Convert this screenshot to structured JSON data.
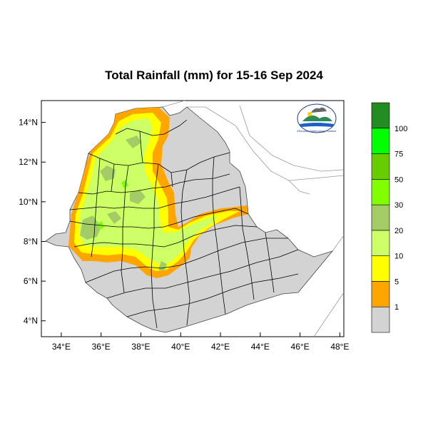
{
  "title": "Total Rainfall (mm) for 15-16 Sep 2024",
  "x_ticks": [
    {
      "value": 34,
      "label": "34°E"
    },
    {
      "value": 36,
      "label": "36°E"
    },
    {
      "value": 38,
      "label": "38°E"
    },
    {
      "value": 40,
      "label": "40°E"
    },
    {
      "value": 42,
      "label": "42°E"
    },
    {
      "value": 44,
      "label": "44°E"
    },
    {
      "value": 46,
      "label": "46°E"
    },
    {
      "value": 48,
      "label": "48°E"
    }
  ],
  "y_ticks": [
    {
      "value": 14,
      "label": "14°N"
    },
    {
      "value": 12,
      "label": "12°N"
    },
    {
      "value": 10,
      "label": "10°N"
    },
    {
      "value": 8,
      "label": "8°N"
    },
    {
      "value": 6,
      "label": "6°N"
    },
    {
      "value": 4,
      "label": "4°N"
    }
  ],
  "extent": {
    "lon": [
      33,
      48.2
    ],
    "lat": [
      3.2,
      15.1
    ]
  },
  "colorbar": {
    "labels": [
      "1",
      "5",
      "10",
      "20",
      "30",
      "50",
      "75",
      "100"
    ],
    "colors": [
      "#d3d3d3",
      "#ffa500",
      "#ffff00",
      "#ccff66",
      "#a3cc66",
      "#80ff00",
      "#66cc00",
      "#00ff00",
      "#228b22"
    ]
  },
  "logo": {
    "text": "Ethiopian Meteorology Institute"
  },
  "colors": {
    "land": "#d3d3d3",
    "border": "#000000",
    "coast": "#999999"
  }
}
